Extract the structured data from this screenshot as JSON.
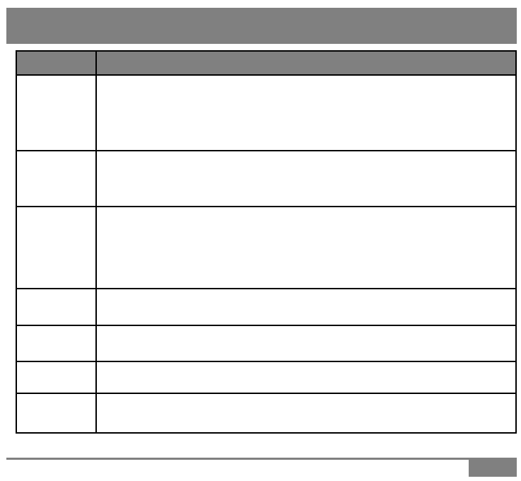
{
  "colors": {
    "header_gray": "#808080",
    "border": "#000000"
  },
  "table": {
    "rows": [
      {
        "c1": "",
        "c2": ""
      },
      {
        "c1": "",
        "c2": ""
      },
      {
        "c1": "",
        "c2": ""
      },
      {
        "c1": "",
        "c2": ""
      },
      {
        "c1": "",
        "c2": ""
      },
      {
        "c1": "",
        "c2": ""
      },
      {
        "c1": "",
        "c2": ""
      }
    ]
  }
}
